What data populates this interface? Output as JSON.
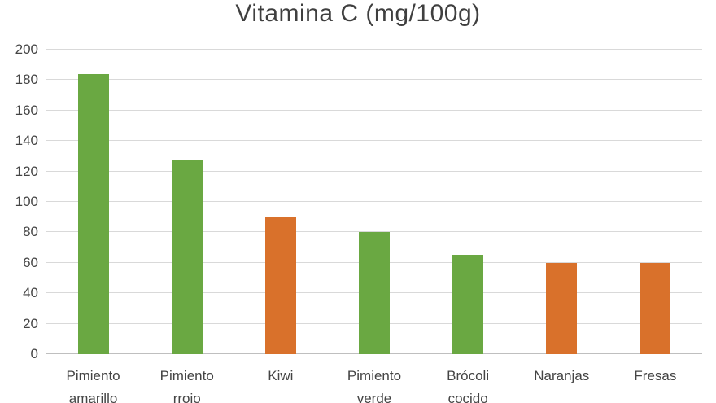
{
  "title": "Vitamina C (mg/100g)",
  "colors": {
    "green_bar": "#6AA842",
    "orange_bar": "#D9712B",
    "title_text": "#3F3F3F",
    "axis_text": "#444444",
    "gridline": "#D9D9D9",
    "axis_line": "#BFBFBF",
    "background": "#FFFFFF"
  },
  "chart_data": {
    "type": "bar",
    "title": "Vitamina C (mg/100g)",
    "categories": [
      "Pimiento amarillo",
      "Pimiento rrojo",
      "Kiwi",
      "Pimiento verde",
      "Brócoli cocido",
      "Naranjas",
      "Fresas"
    ],
    "category_label_lines": [
      [
        "Pimiento",
        "amarillo"
      ],
      [
        "Pimiento",
        "rrojo"
      ],
      [
        "Kiwi"
      ],
      [
        "Pimiento",
        "verde"
      ],
      [
        "Brócoli",
        "cocido"
      ],
      [
        "Naranjas"
      ],
      [
        "Fresas"
      ]
    ],
    "values": [
      184,
      128,
      90,
      80,
      65,
      60,
      60
    ],
    "bar_colors": [
      "#6AA842",
      "#6AA842",
      "#D9712B",
      "#6AA842",
      "#6AA842",
      "#D9712B",
      "#D9712B"
    ],
    "xlabel": "",
    "ylabel": "",
    "ylim": [
      0,
      200
    ],
    "ytick_step": 20,
    "ytick_labels": [
      "0",
      "20",
      "40",
      "60",
      "80",
      "100",
      "120",
      "140",
      "160",
      "180",
      "200"
    ],
    "grid": "horizontal",
    "legend": "none"
  }
}
